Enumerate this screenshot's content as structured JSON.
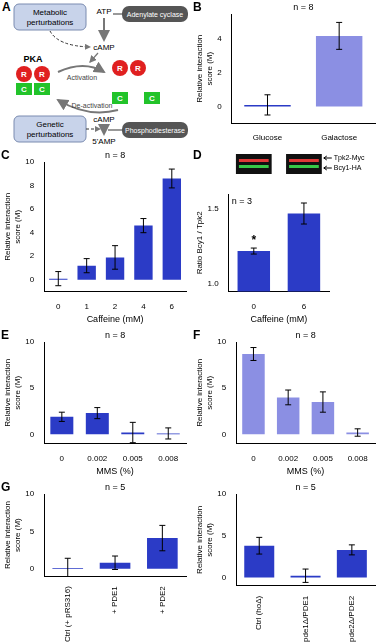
{
  "diagram": {
    "panel_label": "A",
    "metabolic": [
      "Metabolic",
      "perturbations"
    ],
    "atp": "ATP",
    "cyclase": "Adenylate cyclase",
    "camp_top": "cAMP",
    "pka": "PKA",
    "regulatory": "R",
    "catalytic": "C",
    "activation": "Activation",
    "deactivation": "De-activation",
    "genetic": [
      "Genetic",
      "perturbations"
    ],
    "camp_bottom": "cAMP",
    "pde": "Phosphodiesterase",
    "amp": "5'AMP"
  },
  "chart_data": [
    {
      "type": "bar",
      "panel_label": "B",
      "annotation": "n = 8",
      "y_label": [
        "Relative interaction",
        "score (M)"
      ],
      "categories": [
        "Glucose",
        "Galactose"
      ],
      "values": [
        0.1,
        4.2
      ],
      "errors": [
        0.6,
        0.8
      ],
      "colors": [
        "#2b3bc6",
        "#8b8fe3"
      ],
      "ylim": [
        -1,
        5.5
      ],
      "yticks": [
        0,
        2,
        4
      ],
      "grid": false
    },
    {
      "type": "bar",
      "panel_label": "C",
      "annotation": "n = 8",
      "y_label": [
        "Relative interaction",
        "score (M)"
      ],
      "x_label": "Caffeine (mM)",
      "categories": [
        "0",
        "1",
        "2",
        "4",
        "6"
      ],
      "values": [
        0.1,
        1.2,
        1.9,
        4.6,
        8.6
      ],
      "errors": [
        0.6,
        0.6,
        1.0,
        0.6,
        0.8
      ],
      "color": "#2b3bc6",
      "ylim": [
        -1,
        10
      ],
      "yticks": [
        0,
        2,
        4,
        6,
        8,
        10
      ],
      "grid": false
    },
    {
      "type": "bar",
      "panel_label": "D",
      "annotation": "n = 3",
      "y_label": "Ratio Bcy1 / Tpk2",
      "x_label": "Caffeine (mM)",
      "categories": [
        "0",
        "6"
      ],
      "values": [
        1.22,
        1.47
      ],
      "errors": [
        0.02,
        0.07
      ],
      "bar_annotations": [
        "*",
        null
      ],
      "blot_labels": [
        "Tpk2-Myc",
        "Bcy1-HA"
      ],
      "color": "#2b3bc6",
      "ylim": [
        0.95,
        1.6
      ],
      "yticks": [
        {
          "value": 1,
          "label": "1.0"
        },
        {
          "value": 1.5,
          "label": "1.5"
        }
      ],
      "grid": false
    },
    {
      "type": "bar",
      "panel_label": "E",
      "annotation": "n = 8",
      "y_label": [
        "Relative interaction",
        "score (M)"
      ],
      "x_label": "MMS (%)",
      "categories": [
        "0",
        "0.002",
        "0.005",
        "0.008"
      ],
      "values": [
        1.9,
        2.3,
        0.2,
        0.1
      ],
      "errors": [
        0.5,
        0.6,
        1.1,
        0.6
      ],
      "color": "#2b3bc6",
      "ylim": [
        -1,
        10
      ],
      "yticks": [
        0,
        5,
        10
      ],
      "grid": false
    },
    {
      "type": "bar",
      "panel_label": "F",
      "annotation": "n = 8",
      "y_label": [
        "Relative interaction",
        "score (M)"
      ],
      "x_label": "MMS (%)",
      "categories": [
        "0",
        "0.002",
        "0.005",
        "0.008"
      ],
      "values": [
        8.7,
        4.0,
        3.5,
        0.2
      ],
      "errors": [
        0.7,
        0.8,
        1.1,
        0.4
      ],
      "color": "#8b8fe3",
      "ylim": [
        -1,
        10
      ],
      "yticks": [
        0,
        5,
        10
      ],
      "grid": false
    },
    {
      "type": "bar",
      "panel_label": "G",
      "annotation": "n = 5",
      "y_label": [
        "Relative interaction",
        "score (M)"
      ],
      "categories": [
        "Ctrl (+ pRS316)",
        "+ PDE1",
        "+ PDE2"
      ],
      "values": [
        0.1,
        0.8,
        4.1
      ],
      "errors": [
        1.3,
        0.9,
        1.7
      ],
      "color": "#2b3bc6",
      "ylim": [
        -1,
        10
      ],
      "yticks": [
        0,
        5,
        10
      ],
      "grid": false
    },
    {
      "type": "bar",
      "annotation": "n = 5",
      "y_label": [
        "Relative interaction",
        "score (M)"
      ],
      "categories": [
        "Ctrl (hoΔ)",
        "pde1Δ/PDE1",
        "pde2Δ/PDE2"
      ],
      "values": [
        3.8,
        0.2,
        3.3
      ],
      "errors": [
        1.0,
        0.8,
        0.6
      ],
      "color": "#2b3bc6",
      "ylim": [
        -1,
        10
      ],
      "yticks": [
        0,
        5,
        10
      ],
      "grid": false
    }
  ]
}
